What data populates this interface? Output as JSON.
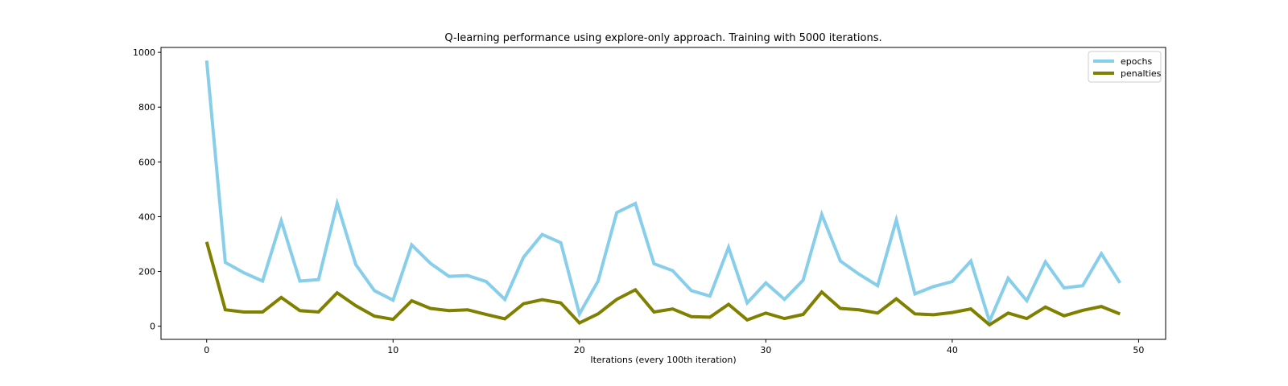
{
  "chart_data": {
    "type": "line",
    "title": "Q-learning performance using explore-only approach. Training with 5000 iterations.",
    "xlabel": "Iterations (every 100th iteration)",
    "ylabel": "",
    "xlim": [
      -2.45,
      51.45
    ],
    "ylim": [
      -48,
      1018
    ],
    "xticks": [
      0,
      10,
      20,
      30,
      40,
      50
    ],
    "yticks": [
      0,
      200,
      400,
      600,
      800,
      1000
    ],
    "grid": false,
    "legend_position": "top-right",
    "x": [
      0,
      1,
      2,
      3,
      4,
      5,
      6,
      7,
      8,
      9,
      10,
      11,
      12,
      13,
      14,
      15,
      16,
      17,
      18,
      19,
      20,
      21,
      22,
      23,
      24,
      25,
      26,
      27,
      28,
      29,
      30,
      31,
      32,
      33,
      34,
      35,
      36,
      37,
      38,
      39,
      40,
      41,
      42,
      43,
      44,
      45,
      46,
      47,
      48,
      49
    ],
    "series": [
      {
        "name": "epochs",
        "color": "#87ceeb",
        "values": [
          970,
          233,
          195,
          165,
          385,
          165,
          170,
          448,
          225,
          130,
          95,
          297,
          230,
          182,
          185,
          163,
          98,
          252,
          335,
          305,
          45,
          165,
          415,
          448,
          228,
          203,
          130,
          110,
          288,
          85,
          158,
          98,
          168,
          408,
          238,
          190,
          148,
          388,
          118,
          145,
          163,
          238,
          18,
          175,
          93,
          235,
          140,
          148,
          265,
          158
        ]
      },
      {
        "name": "penalties",
        "color": "#808000",
        "values": [
          308,
          60,
          52,
          52,
          105,
          57,
          52,
          122,
          75,
          37,
          25,
          93,
          65,
          57,
          60,
          43,
          27,
          82,
          97,
          85,
          12,
          45,
          98,
          133,
          52,
          63,
          35,
          33,
          80,
          23,
          48,
          28,
          43,
          125,
          65,
          60,
          48,
          100,
          45,
          42,
          50,
          63,
          5,
          48,
          28,
          70,
          38,
          58,
          72,
          45
        ]
      }
    ]
  }
}
